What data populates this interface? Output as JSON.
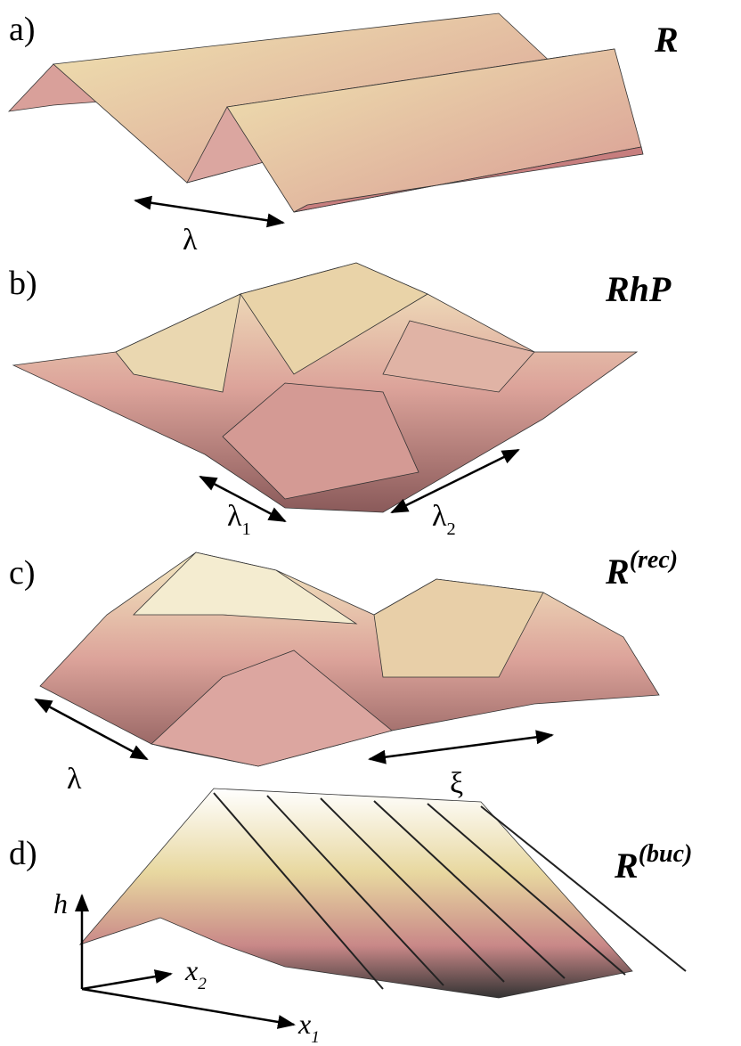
{
  "panels": [
    {
      "label": "a)",
      "name": {
        "base": "R"
      },
      "annotations": [
        {
          "base": "λ"
        }
      ]
    },
    {
      "label": "b)",
      "name": {
        "base": "RhP"
      },
      "annotations": [
        {
          "base": "λ",
          "sub": "1"
        },
        {
          "base": "λ",
          "sub": "2"
        }
      ]
    },
    {
      "label": "c)",
      "name": {
        "base": "R",
        "sup": "(rec)"
      },
      "annotations": [
        {
          "base": "λ"
        },
        {
          "base": "ξ"
        }
      ]
    },
    {
      "label": "d)",
      "name": {
        "base": "R",
        "sup": "(buc)"
      }
    }
  ],
  "axes": [
    {
      "base": "h"
    },
    {
      "base": "x",
      "sub": "2"
    },
    {
      "base": "x",
      "sub": "1"
    }
  ]
}
